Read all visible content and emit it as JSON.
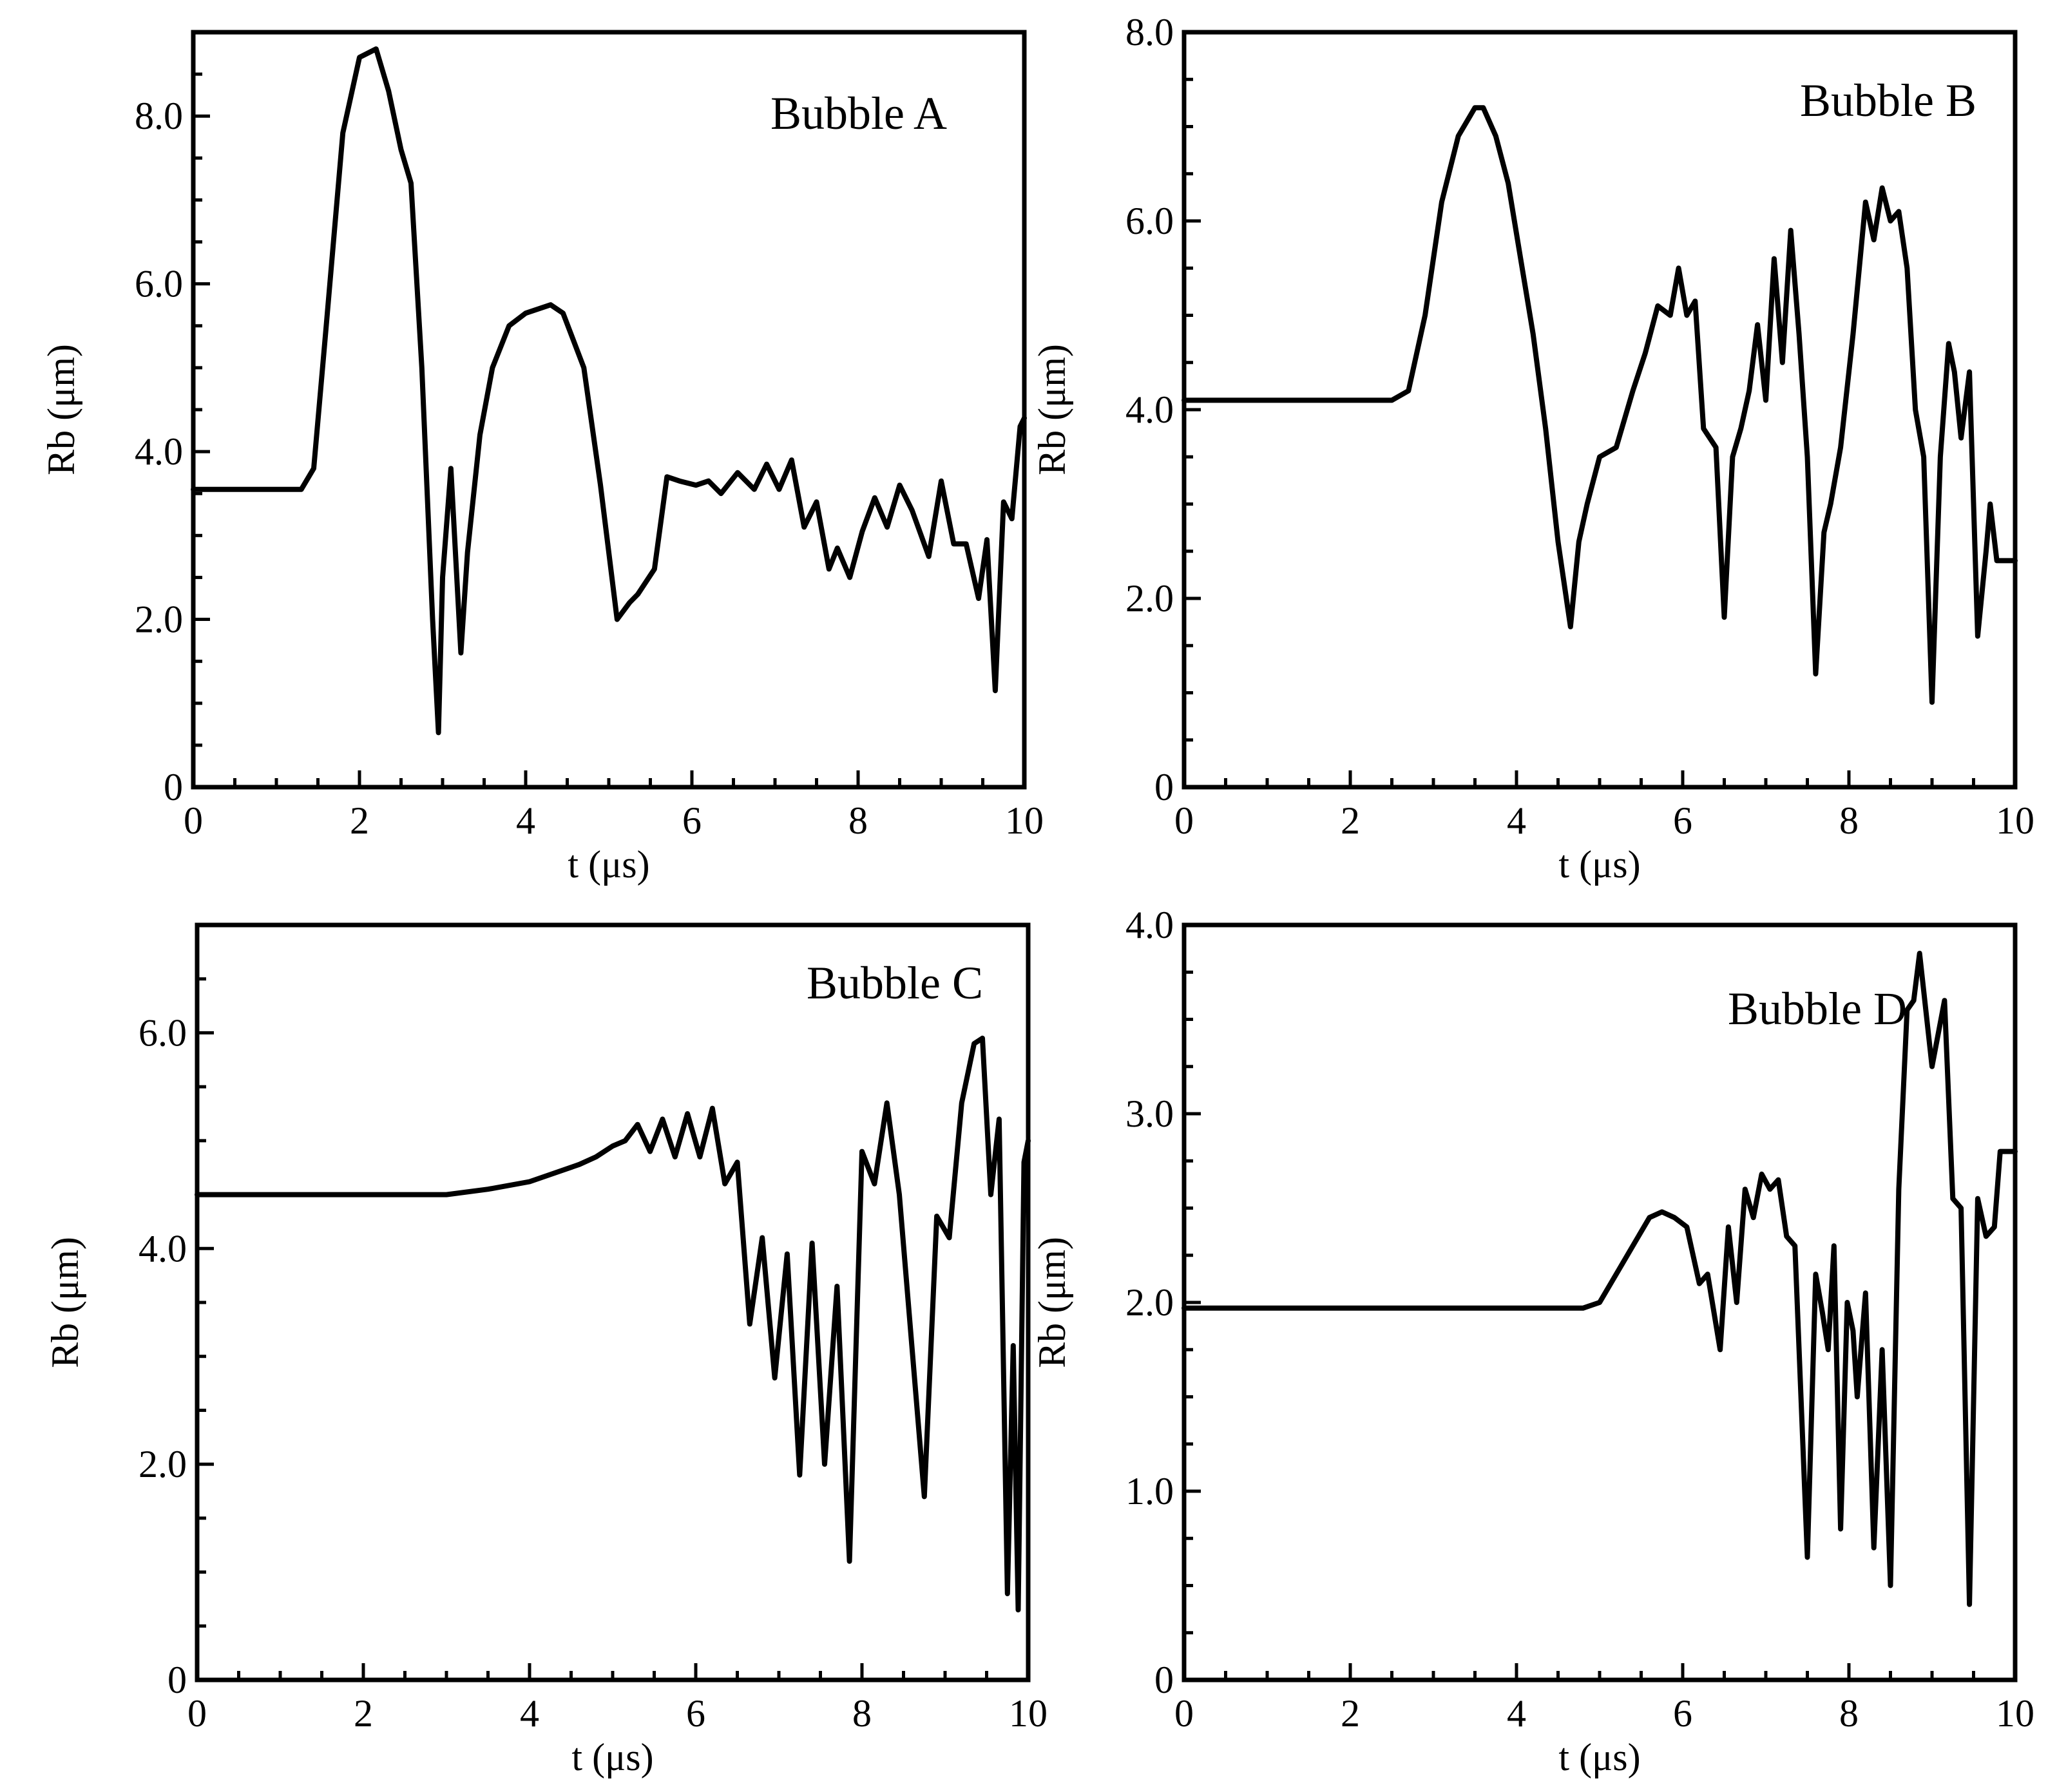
{
  "chart_data": [
    {
      "type": "line",
      "title": "Bubble A",
      "xlabel": "t (μs)",
      "ylabel": "Rb (μm)",
      "xlim": [
        0,
        10
      ],
      "ylim": [
        0,
        9.0
      ],
      "xticks": [
        "0",
        "2",
        "4",
        "6",
        "8",
        "10"
      ],
      "yticks": [
        "0",
        "2.0",
        "4.0",
        "6.0",
        "8.0"
      ],
      "yticks_values": [
        0,
        2,
        4,
        6,
        8
      ],
      "x": [
        0,
        1.3,
        1.45,
        1.6,
        1.8,
        2.0,
        2.2,
        2.35,
        2.5,
        2.62,
        2.75,
        2.88,
        2.95,
        3.0,
        3.1,
        3.22,
        3.3,
        3.45,
        3.6,
        3.8,
        4.0,
        4.3,
        4.45,
        4.7,
        4.9,
        5.1,
        5.25,
        5.35,
        5.55,
        5.7,
        5.85,
        6.05,
        6.2,
        6.35,
        6.55,
        6.75,
        6.9,
        7.05,
        7.2,
        7.35,
        7.5,
        7.65,
        7.75,
        7.9,
        8.05,
        8.2,
        8.35,
        8.5,
        8.65,
        8.85,
        9.0,
        9.15,
        9.3,
        9.45,
        9.55,
        9.65,
        9.75,
        9.85,
        9.95,
        10.0
      ],
      "series": [
        {
          "values": [
            3.55,
            3.55,
            3.8,
            5.5,
            7.8,
            8.7,
            8.8,
            8.3,
            7.6,
            7.2,
            5.0,
            2.0,
            0.65,
            2.5,
            3.8,
            1.6,
            2.8,
            4.2,
            5.0,
            5.5,
            5.65,
            5.75,
            5.65,
            5.0,
            3.6,
            2.0,
            2.2,
            2.3,
            2.6,
            3.7,
            3.65,
            3.6,
            3.65,
            3.5,
            3.75,
            3.55,
            3.85,
            3.55,
            3.9,
            3.1,
            3.4,
            2.6,
            2.85,
            2.5,
            3.05,
            3.45,
            3.1,
            3.6,
            3.3,
            2.75,
            3.65,
            2.9,
            2.9,
            2.25,
            2.95,
            1.15,
            3.4,
            3.2,
            4.3,
            4.4
          ]
        }
      ]
    },
    {
      "type": "line",
      "title": "Bubble B",
      "xlabel": "t (μs)",
      "ylabel": "Rb (μm)",
      "xlim": [
        0,
        10
      ],
      "ylim": [
        0,
        8.0
      ],
      "xticks": [
        "0",
        "2",
        "4",
        "6",
        "8",
        "10"
      ],
      "yticks": [
        "0",
        "2.0",
        "4.0",
        "6.0",
        "8.0"
      ],
      "yticks_values": [
        0,
        2,
        4,
        6,
        8
      ],
      "x": [
        0,
        2.5,
        2.7,
        2.9,
        3.1,
        3.3,
        3.5,
        3.6,
        3.75,
        3.9,
        4.05,
        4.2,
        4.35,
        4.5,
        4.65,
        4.75,
        4.85,
        5.0,
        5.2,
        5.4,
        5.55,
        5.7,
        5.85,
        5.95,
        6.05,
        6.15,
        6.25,
        6.4,
        6.5,
        6.6,
        6.7,
        6.8,
        6.9,
        7.0,
        7.1,
        7.2,
        7.3,
        7.4,
        7.5,
        7.6,
        7.7,
        7.78,
        7.9,
        8.05,
        8.2,
        8.3,
        8.4,
        8.5,
        8.6,
        8.7,
        8.8,
        8.9,
        9.0,
        9.1,
        9.2,
        9.27,
        9.35,
        9.45,
        9.55,
        9.65,
        9.7,
        9.78,
        9.85,
        9.92,
        10.0
      ],
      "series": [
        {
          "values": [
            4.1,
            4.1,
            4.2,
            5.0,
            6.2,
            6.9,
            7.2,
            7.2,
            6.9,
            6.4,
            5.6,
            4.8,
            3.8,
            2.6,
            1.7,
            2.6,
            3.0,
            3.5,
            3.6,
            4.2,
            4.6,
            5.1,
            5.0,
            5.5,
            5.0,
            5.15,
            3.8,
            3.6,
            1.8,
            3.5,
            3.8,
            4.2,
            4.9,
            4.1,
            5.6,
            4.5,
            5.9,
            4.8,
            3.5,
            1.2,
            2.7,
            3.0,
            3.6,
            4.8,
            6.2,
            5.8,
            6.35,
            6.0,
            6.1,
            5.5,
            4.0,
            3.5,
            0.9,
            3.5,
            4.7,
            4.4,
            3.7,
            4.4,
            1.6,
            2.5,
            3.0,
            2.4,
            2.4,
            2.4,
            2.4
          ]
        }
      ]
    },
    {
      "type": "line",
      "title": "Bubble C",
      "xlabel": "t (μs)",
      "ylabel": "Rb (μm)",
      "xlim": [
        0,
        10
      ],
      "ylim": [
        0,
        7.0
      ],
      "xticks": [
        "0",
        "2",
        "4",
        "6",
        "8",
        "10"
      ],
      "yticks": [
        "0",
        "2.0",
        "4.0",
        "6.0"
      ],
      "yticks_values": [
        0,
        2,
        4,
        6
      ],
      "x": [
        0,
        3.0,
        3.5,
        4.0,
        4.3,
        4.6,
        4.8,
        5.0,
        5.15,
        5.3,
        5.45,
        5.6,
        5.75,
        5.9,
        6.05,
        6.2,
        6.35,
        6.5,
        6.65,
        6.8,
        6.95,
        7.1,
        7.25,
        7.4,
        7.55,
        7.7,
        7.85,
        8.0,
        8.15,
        8.3,
        8.45,
        8.6,
        8.75,
        8.9,
        9.05,
        9.2,
        9.35,
        9.45,
        9.55,
        9.65,
        9.75,
        9.82,
        9.88,
        9.95,
        10.0
      ],
      "series": [
        {
          "values": [
            4.5,
            4.5,
            4.55,
            4.62,
            4.7,
            4.78,
            4.85,
            4.95,
            5.0,
            5.15,
            4.9,
            5.2,
            4.85,
            5.25,
            4.85,
            5.3,
            4.6,
            4.8,
            3.3,
            4.1,
            2.8,
            3.95,
            1.9,
            4.05,
            2.0,
            3.65,
            1.1,
            4.9,
            4.6,
            5.35,
            4.5,
            3.1,
            1.7,
            4.3,
            4.1,
            5.35,
            5.9,
            5.95,
            4.5,
            5.2,
            0.8,
            3.1,
            0.65,
            4.8,
            5.0
          ]
        }
      ]
    },
    {
      "type": "line",
      "title": "Bubble D",
      "xlabel": "t (μs)",
      "ylabel": "Rb (μm)",
      "xlim": [
        0,
        10
      ],
      "ylim": [
        0,
        4.0
      ],
      "xticks": [
        "0",
        "2",
        "4",
        "6",
        "8",
        "10"
      ],
      "yticks": [
        "0",
        "1.0",
        "2.0",
        "3.0",
        "4.0"
      ],
      "yticks_values": [
        0,
        1,
        2,
        3,
        4
      ],
      "x": [
        0,
        4.8,
        5.0,
        5.2,
        5.4,
        5.6,
        5.75,
        5.9,
        6.05,
        6.2,
        6.3,
        6.45,
        6.55,
        6.65,
        6.75,
        6.85,
        6.95,
        7.05,
        7.15,
        7.25,
        7.35,
        7.5,
        7.6,
        7.68,
        7.75,
        7.82,
        7.9,
        7.98,
        8.05,
        8.1,
        8.2,
        8.3,
        8.4,
        8.5,
        8.6,
        8.7,
        8.78,
        8.85,
        9.0,
        9.15,
        9.25,
        9.35,
        9.45,
        9.55,
        9.65,
        9.75,
        9.82,
        9.88,
        9.95,
        10.0
      ],
      "series": [
        {
          "values": [
            1.97,
            1.97,
            2.0,
            2.15,
            2.3,
            2.45,
            2.48,
            2.45,
            2.4,
            2.1,
            2.15,
            1.75,
            2.4,
            2.0,
            2.6,
            2.45,
            2.68,
            2.6,
            2.65,
            2.35,
            2.3,
            0.65,
            2.15,
            1.95,
            1.75,
            2.3,
            0.8,
            2.0,
            1.85,
            1.5,
            2.05,
            0.7,
            1.75,
            0.5,
            2.6,
            3.55,
            3.6,
            3.85,
            3.25,
            3.6,
            2.55,
            2.5,
            0.4,
            2.55,
            2.35,
            2.4,
            2.8,
            2.8,
            2.8,
            2.8
          ]
        }
      ]
    }
  ]
}
